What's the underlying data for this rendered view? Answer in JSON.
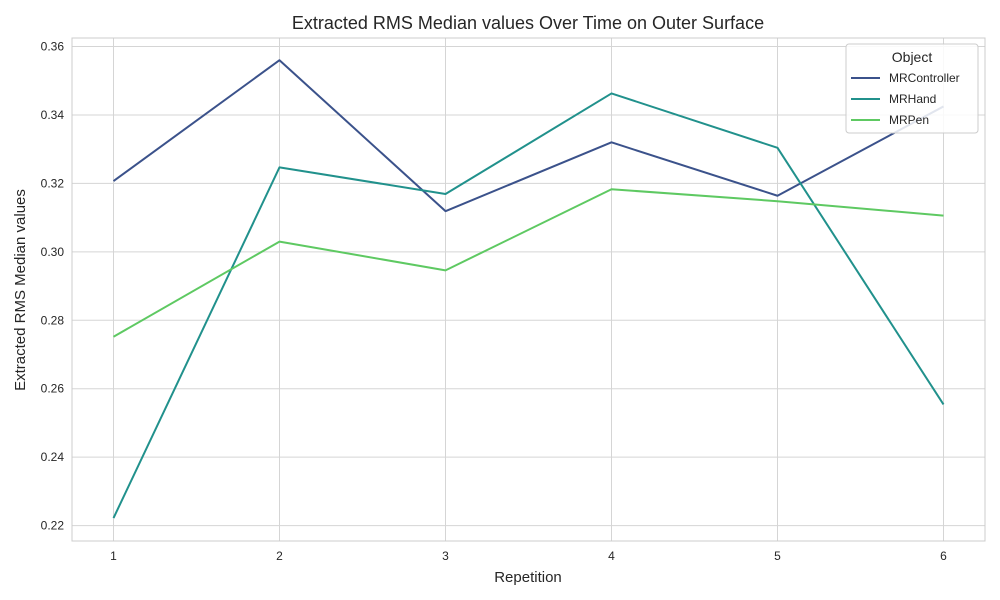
{
  "chart_data": {
    "type": "line",
    "title": "Extracted RMS Median values Over Time on Outer Surface",
    "xlabel": "Repetition",
    "ylabel": "Extracted RMS Median values",
    "x": [
      1,
      2,
      3,
      4,
      5,
      6
    ],
    "x_ticks": [
      "1",
      "2",
      "3",
      "4",
      "5",
      "6"
    ],
    "xlim": [
      0.75,
      6.25
    ],
    "ylim": [
      0.2155,
      0.3625
    ],
    "y_ticks": [
      0.22,
      0.24,
      0.26,
      0.28,
      0.3,
      0.32,
      0.34,
      0.36
    ],
    "y_tick_labels": [
      "0.22",
      "0.24",
      "0.26",
      "0.28",
      "0.30",
      "0.32",
      "0.34",
      "0.36"
    ],
    "grid": true,
    "legend": {
      "title": "Object",
      "placement": "top-right"
    },
    "series": [
      {
        "name": "MRController",
        "color": "#3b528b",
        "values": [
          0.3207,
          0.356,
          0.3119,
          0.332,
          0.3164,
          0.3425
        ]
      },
      {
        "name": "MRHand",
        "color": "#21918c",
        "values": [
          0.2222,
          0.3247,
          0.3169,
          0.3463,
          0.3304,
          0.2554
        ]
      },
      {
        "name": "MRPen",
        "color": "#5ec962",
        "values": [
          0.2752,
          0.303,
          0.2946,
          0.3183,
          0.3148,
          0.3106
        ]
      }
    ]
  }
}
